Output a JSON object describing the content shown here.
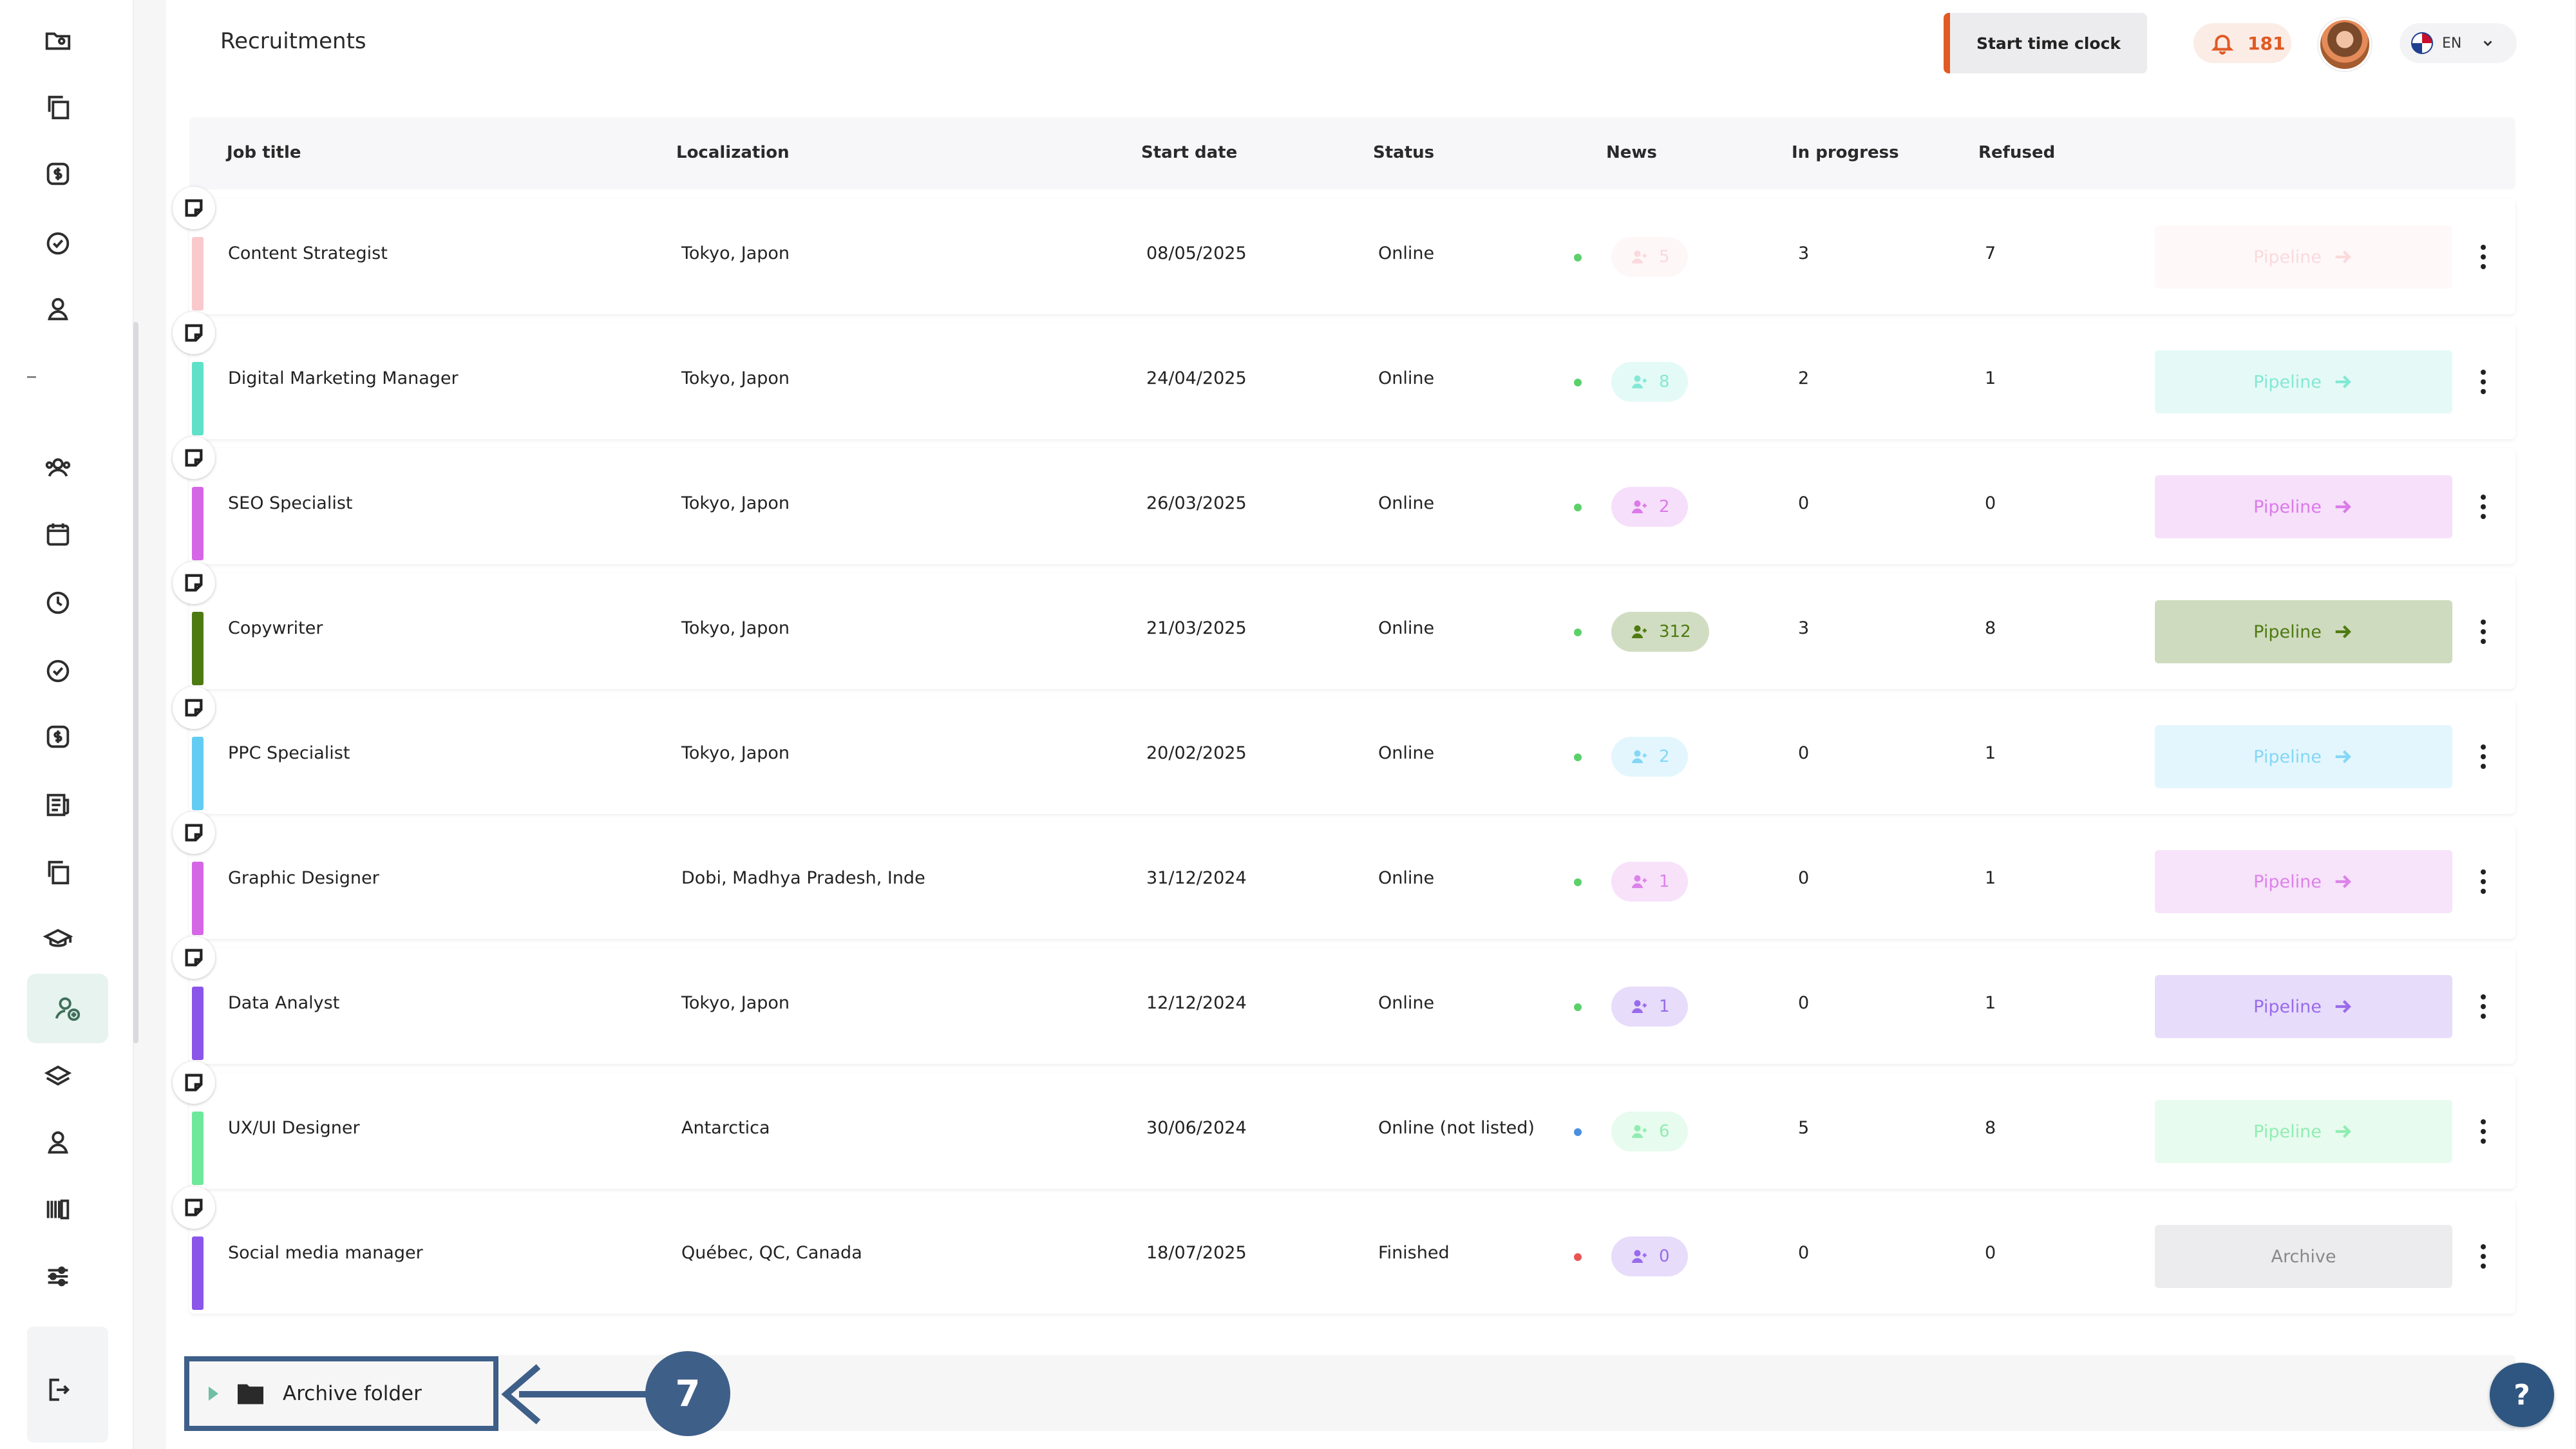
{
  "header": {
    "title": "Recruitments",
    "time_clock_label": "Start time clock",
    "notification_count": "181",
    "language": "EN"
  },
  "sidebar": {
    "icons": [
      "folder-user-icon",
      "copy-icon",
      "dollar-icon",
      "check-circle-icon",
      "user-icon",
      "users-icon",
      "calendar-icon",
      "clock-icon",
      "check-circle-icon",
      "dollar-icon",
      "document-icon",
      "copy-icon",
      "graduation-cap-icon",
      "user-add-icon",
      "layers-icon",
      "user-icon",
      "barcode-icon",
      "sliders-icon",
      "logout-icon"
    ],
    "active": "user-add-icon"
  },
  "table": {
    "headers": {
      "job_title": "Job title",
      "localization": "Localization",
      "start_date": "Start date",
      "status": "Status",
      "news": "News",
      "in_progress": "In progress",
      "refused": "Refused"
    },
    "rows": [
      {
        "title": "Content Strategist",
        "location": "Tokyo, Japon",
        "start_date": "08/05/2025",
        "status": "Online",
        "news": "5",
        "in_progress": "3",
        "refused": "7",
        "action": "Pipeline",
        "color": "#f9c9cc"
      },
      {
        "title": "Digital Marketing Manager",
        "location": "Tokyo, Japon",
        "start_date": "24/04/2025",
        "status": "Online",
        "news": "8",
        "in_progress": "2",
        "refused": "1",
        "action": "Pipeline",
        "color": "#5fe0c8"
      },
      {
        "title": "SEO Specialist",
        "location": "Tokyo, Japon",
        "start_date": "26/03/2025",
        "status": "Online",
        "news": "2",
        "in_progress": "0",
        "refused": "0",
        "action": "Pipeline",
        "color": "#d566e6"
      },
      {
        "title": "Copywriter",
        "location": "Tokyo, Japon",
        "start_date": "21/03/2025",
        "status": "Online",
        "news": "312",
        "in_progress": "3",
        "refused": "8",
        "action": "Pipeline",
        "color": "#4e7a12"
      },
      {
        "title": "PPC Specialist",
        "location": "Tokyo, Japon",
        "start_date": "20/02/2025",
        "status": "Online",
        "news": "2",
        "in_progress": "0",
        "refused": "1",
        "action": "Pipeline",
        "color": "#63ccf2"
      },
      {
        "title": "Graphic Designer",
        "location": "Dobi, Madhya Pradesh, Inde",
        "start_date": "31/12/2024",
        "status": "Online",
        "news": "1",
        "in_progress": "0",
        "refused": "1",
        "action": "Pipeline",
        "color": "#d566e6"
      },
      {
        "title": "Data Analyst",
        "location": "Tokyo, Japon",
        "start_date": "12/12/2024",
        "status": "Online",
        "news": "1",
        "in_progress": "0",
        "refused": "1",
        "action": "Pipeline",
        "color": "#8a55e8"
      },
      {
        "title": "UX/UI Designer",
        "location": "Antarctica",
        "start_date": "30/06/2024",
        "status": "Online (not listed)",
        "news": "6",
        "in_progress": "5",
        "refused": "8",
        "action": "Pipeline",
        "color": "#6ee89a"
      },
      {
        "title": "Social media manager",
        "location": "Québec, QC, Canada",
        "start_date": "18/07/2025",
        "status": "Finished",
        "news": "0",
        "in_progress": "0",
        "refused": "0",
        "action": "Archive",
        "color": "#8a55e8"
      }
    ]
  },
  "archive_folder": {
    "label": "Archive folder"
  },
  "annotation": {
    "step": "7"
  },
  "help": {
    "label": "?"
  }
}
